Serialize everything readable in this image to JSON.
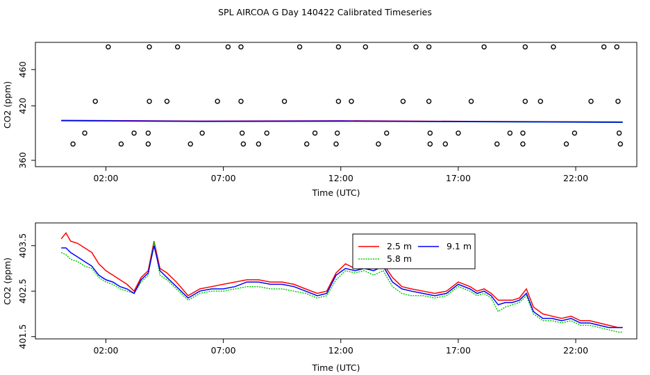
{
  "figure": {
    "title": "SPL AIRCOA G  Day 140422  Calibrated Timeseries"
  },
  "chart_data": [
    {
      "type": "scatter",
      "title": "",
      "xlabel": "Time (UTC)",
      "ylabel": "CO2 (ppm)",
      "xlim": [
        -1.0,
        24.6
      ],
      "ylim": [
        353,
        490
      ],
      "xticks": [
        {
          "value": 2,
          "label": "02:00"
        },
        {
          "value": 7,
          "label": "07:00"
        },
        {
          "value": 12,
          "label": "12:00"
        },
        {
          "value": 17,
          "label": "17:00"
        },
        {
          "value": 22,
          "label": "22:00"
        }
      ],
      "yticks": [
        {
          "value": 360,
          "label": "360"
        },
        {
          "value": 420,
          "label": "420"
        },
        {
          "value": 460,
          "label": "460"
        }
      ],
      "points": {
        "marker": "open-circle",
        "levels": [
          {
            "y": 485,
            "x": [
              2.1,
              3.85,
              5.05,
              7.2,
              7.75,
              10.25,
              11.9,
              13.05,
              15.2,
              15.75,
              18.1,
              19.85,
              21.05,
              23.2,
              23.75
            ]
          },
          {
            "y": 425,
            "x": [
              1.55,
              3.85,
              4.6,
              6.75,
              7.75,
              9.6,
              11.9,
              12.45,
              14.65,
              15.75,
              17.55,
              19.85,
              20.5,
              22.65,
              23.8
            ]
          },
          {
            "y": 390,
            "x": [
              1.1,
              3.2,
              3.8,
              6.1,
              7.8,
              8.85,
              10.9,
              11.85,
              13.95,
              15.8,
              17.0,
              19.2,
              19.75,
              21.95,
              23.85
            ]
          },
          {
            "y": 378,
            "x": [
              0.6,
              2.65,
              3.8,
              5.6,
              7.85,
              8.5,
              10.55,
              11.8,
              13.6,
              15.8,
              16.45,
              18.65,
              19.75,
              21.6,
              23.9
            ]
          }
        ]
      },
      "series": [
        {
          "name": "2.5 m",
          "color": "#ff0000",
          "x": [
            0.1,
            6,
            12,
            18,
            24.0
          ],
          "y": [
            404.0,
            403.2,
            403.6,
            402.8,
            402.2
          ]
        },
        {
          "name": "5.8 m",
          "color": "#00cc00",
          "x": [
            0.1,
            6,
            12,
            18,
            24.0
          ],
          "y": [
            403.6,
            402.8,
            403.0,
            402.5,
            401.8
          ]
        },
        {
          "name": "9.1 m",
          "color": "#0000ff",
          "x": [
            0.1,
            6,
            12,
            18,
            24.0
          ],
          "y": [
            403.8,
            403.0,
            403.3,
            402.6,
            402.0
          ]
        }
      ]
    },
    {
      "type": "line",
      "title": "",
      "xlabel": "Time (UTC)",
      "ylabel": "CO2 (ppm)",
      "xlim": [
        -1.0,
        24.6
      ],
      "ylim": [
        401.45,
        404.0
      ],
      "xticks": [
        {
          "value": 2,
          "label": "02:00"
        },
        {
          "value": 7,
          "label": "07:00"
        },
        {
          "value": 12,
          "label": "12:00"
        },
        {
          "value": 17,
          "label": "17:00"
        },
        {
          "value": 22,
          "label": "22:00"
        }
      ],
      "yticks": [
        {
          "value": 401.5,
          "label": "401.5"
        },
        {
          "value": 402.5,
          "label": "402.5"
        },
        {
          "value": 403.5,
          "label": "403.5"
        }
      ],
      "legend": {
        "position": "top-center",
        "layout": "two-columns"
      },
      "x": [
        0.1,
        0.3,
        0.5,
        0.8,
        1.1,
        1.4,
        1.7,
        2.0,
        2.3,
        2.6,
        2.9,
        3.2,
        3.5,
        3.8,
        4.05,
        4.3,
        4.6,
        5.0,
        5.5,
        6.0,
        6.5,
        7.0,
        7.5,
        8.0,
        8.5,
        9.0,
        9.5,
        10.0,
        10.5,
        11.0,
        11.4,
        11.8,
        12.2,
        12.6,
        13.0,
        13.4,
        13.8,
        14.2,
        14.6,
        15.0,
        15.5,
        16.0,
        16.5,
        17.0,
        17.5,
        17.8,
        18.1,
        18.4,
        18.7,
        19.0,
        19.3,
        19.6,
        19.9,
        20.2,
        20.6,
        21.0,
        21.4,
        21.8,
        22.2,
        22.6,
        23.0,
        23.4,
        23.8,
        24.0
      ],
      "series": [
        {
          "name": "2.5 m",
          "color": "#ff0000",
          "values": [
            403.65,
            403.78,
            403.6,
            403.55,
            403.45,
            403.35,
            403.1,
            402.95,
            402.85,
            402.75,
            402.65,
            402.5,
            402.8,
            402.95,
            403.6,
            403.0,
            402.9,
            402.7,
            402.4,
            402.55,
            402.6,
            402.65,
            402.7,
            402.75,
            402.75,
            402.7,
            402.7,
            402.65,
            402.55,
            402.45,
            402.5,
            402.9,
            403.1,
            403.0,
            403.05,
            403.0,
            403.1,
            402.8,
            402.6,
            402.55,
            402.5,
            402.45,
            402.5,
            402.7,
            402.6,
            402.5,
            402.55,
            402.45,
            402.3,
            402.3,
            402.3,
            402.35,
            402.55,
            402.15,
            402.0,
            401.95,
            401.9,
            401.95,
            401.85,
            401.85,
            401.8,
            401.75,
            401.7,
            401.7
          ]
        },
        {
          "name": "5.8 m",
          "color": "#00cc00",
          "values": [
            403.35,
            403.3,
            403.2,
            403.15,
            403.05,
            403.0,
            402.8,
            402.7,
            402.65,
            402.55,
            402.5,
            402.45,
            402.7,
            402.85,
            403.6,
            402.85,
            402.75,
            402.55,
            402.3,
            402.45,
            402.5,
            402.5,
            402.55,
            402.6,
            402.6,
            402.55,
            402.55,
            402.5,
            402.45,
            402.35,
            402.4,
            402.75,
            402.95,
            402.9,
            402.95,
            402.85,
            402.95,
            402.6,
            402.45,
            402.4,
            402.4,
            402.35,
            402.4,
            402.6,
            402.5,
            402.4,
            402.45,
            402.35,
            402.05,
            402.15,
            402.2,
            402.25,
            402.4,
            402.0,
            401.85,
            401.85,
            401.8,
            401.85,
            401.75,
            401.75,
            401.7,
            401.65,
            401.6,
            401.6
          ]
        },
        {
          "name": "9.1 m",
          "color": "#0000ff",
          "values": [
            403.45,
            403.45,
            403.35,
            403.25,
            403.15,
            403.05,
            402.85,
            402.75,
            402.7,
            402.6,
            402.55,
            402.45,
            402.75,
            402.9,
            403.5,
            402.95,
            402.8,
            402.6,
            402.35,
            402.5,
            402.55,
            402.55,
            402.6,
            402.7,
            402.7,
            402.65,
            402.65,
            402.6,
            402.5,
            402.4,
            402.45,
            402.85,
            403.0,
            402.95,
            403.0,
            402.95,
            403.05,
            402.7,
            402.55,
            402.5,
            402.45,
            402.4,
            402.45,
            402.65,
            402.55,
            402.45,
            402.5,
            402.4,
            402.2,
            402.25,
            402.25,
            402.3,
            402.45,
            402.05,
            401.9,
            401.9,
            401.85,
            401.9,
            401.8,
            401.8,
            401.75,
            401.7,
            401.7,
            401.7
          ]
        }
      ]
    }
  ]
}
